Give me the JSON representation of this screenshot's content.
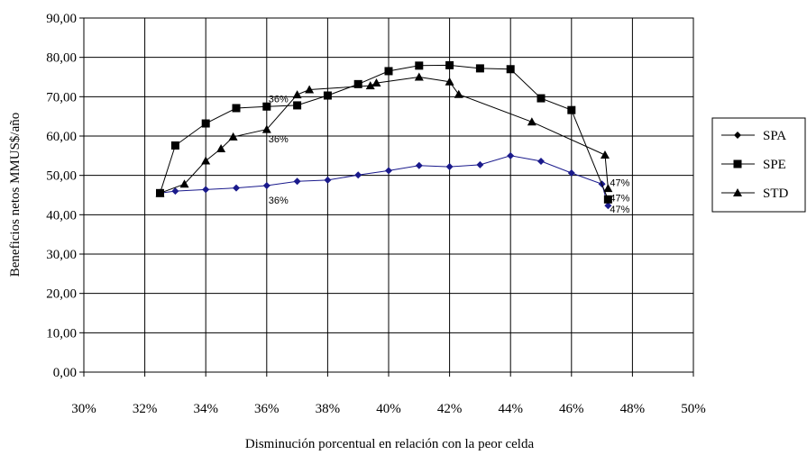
{
  "chart_data": {
    "type": "line",
    "title": "",
    "xlabel": "Disminución porcentual en relación con la peor celda",
    "ylabel": "Beneficios netos MMUS$/año",
    "xlim": [
      30,
      50
    ],
    "ylim": [
      0,
      90
    ],
    "x_ticks": [
      "30%",
      "32%",
      "34%",
      "36%",
      "38%",
      "40%",
      "42%",
      "44%",
      "46%",
      "48%",
      "50%"
    ],
    "y_ticks": [
      "0,00",
      "10,00",
      "20,00",
      "30,00",
      "40,00",
      "50,00",
      "60,00",
      "70,00",
      "80,00",
      "90,00"
    ],
    "grid": true,
    "legend_position": "right",
    "series": [
      {
        "name": "SPA",
        "color": "#1a1a8c",
        "marker": "diamond",
        "points": [
          [
            32.5,
            45.5
          ],
          [
            33,
            46
          ],
          [
            34,
            46.4
          ],
          [
            35,
            46.8
          ],
          [
            36,
            47.4
          ],
          [
            37,
            48.5
          ],
          [
            38,
            48.8
          ],
          [
            39,
            50.1
          ],
          [
            40,
            51.2
          ],
          [
            41,
            52.5
          ],
          [
            42,
            52.2
          ],
          [
            43,
            52.7
          ],
          [
            44,
            55
          ],
          [
            45,
            53.6
          ],
          [
            46,
            50.6
          ],
          [
            47,
            47.8
          ],
          [
            47.2,
            42.3
          ]
        ]
      },
      {
        "name": "SPE",
        "color": "#000000",
        "marker": "square",
        "points": [
          [
            32.5,
            45.5
          ],
          [
            33,
            57.6
          ],
          [
            34,
            63.2
          ],
          [
            35,
            67.1
          ],
          [
            36,
            67.5
          ],
          [
            37,
            67.8
          ],
          [
            38,
            70.3
          ],
          [
            39,
            73.2
          ],
          [
            40,
            76.5
          ],
          [
            41,
            77.9
          ],
          [
            42,
            78
          ],
          [
            43,
            77.2
          ],
          [
            44,
            77
          ],
          [
            45,
            69.6
          ],
          [
            46,
            66.6
          ],
          [
            47.2,
            43.9
          ]
        ]
      },
      {
        "name": "STD",
        "color": "#000000",
        "marker": "triangle",
        "points": [
          [
            32.5,
            45.5
          ],
          [
            33.3,
            47.8
          ],
          [
            34,
            53.7
          ],
          [
            34.5,
            56.8
          ],
          [
            34.9,
            59.8
          ],
          [
            36,
            61.7
          ],
          [
            37,
            70.5
          ],
          [
            37.4,
            71.8
          ],
          [
            39.4,
            72.8
          ],
          [
            39.6,
            73.5
          ],
          [
            41,
            75
          ],
          [
            42,
            73.8
          ],
          [
            42.3,
            70.6
          ],
          [
            44.7,
            63.6
          ],
          [
            47.1,
            55.2
          ],
          [
            47.2,
            46.7
          ]
        ]
      }
    ],
    "annotations": [
      {
        "text": "36%",
        "x": 36,
        "y": 69.5
      },
      {
        "text": "36%",
        "x": 36,
        "y": 59.3
      },
      {
        "text": "36%",
        "x": 36,
        "y": 43.7
      },
      {
        "text": "47%",
        "x": 47.2,
        "y": 48.2
      },
      {
        "text": "47%",
        "x": 47.2,
        "y": 44.3
      },
      {
        "text": "47%",
        "x": 47.2,
        "y": 41.5
      }
    ]
  }
}
